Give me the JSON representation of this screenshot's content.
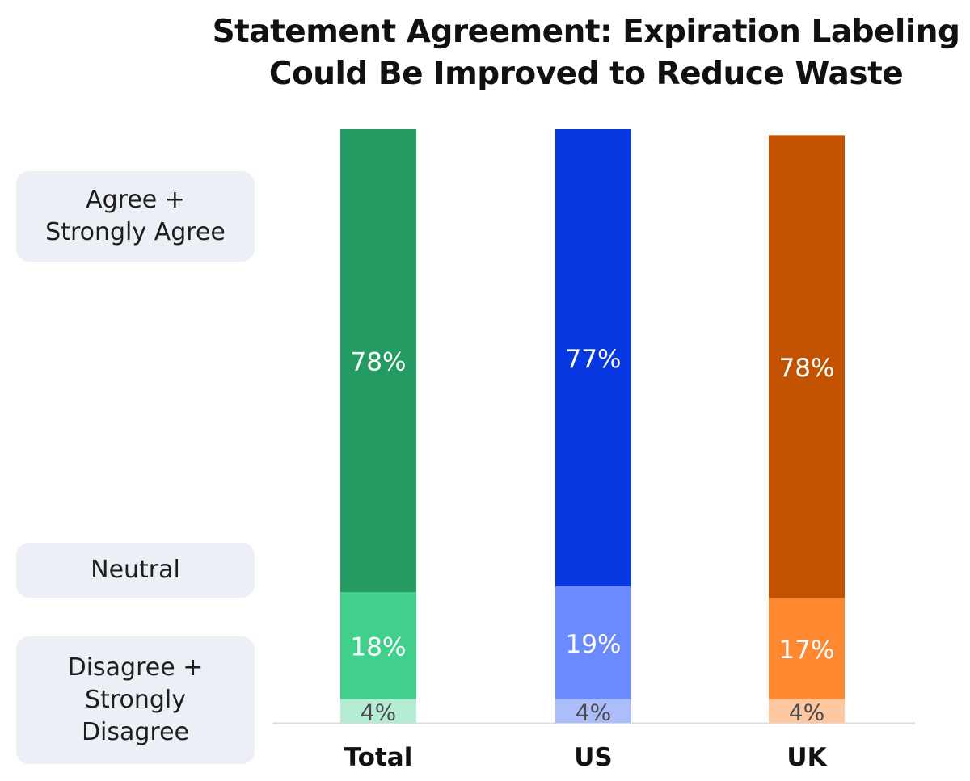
{
  "chart_data": {
    "type": "bar",
    "stacked": true,
    "title": [
      "Statement Agreement: Expiration Labeling",
      "Could Be Improved to Reduce Waste"
    ],
    "categories": [
      "Total",
      "US",
      "UK"
    ],
    "series": [
      {
        "name": "Disagree + Strongly Disagree",
        "values": [
          4,
          4,
          4
        ],
        "labels": [
          "4%",
          "4%",
          "4%"
        ]
      },
      {
        "name": "Neutral",
        "values": [
          18,
          19,
          17
        ],
        "labels": [
          "18%",
          "19%",
          "17%"
        ]
      },
      {
        "name": "Agree + Strongly Agree",
        "values": [
          78,
          77,
          78
        ],
        "labels": [
          "78%",
          "77%",
          "78%"
        ]
      }
    ],
    "legend": [
      {
        "name": "Agree + Strongly Agree",
        "lines": [
          "Agree +",
          "Strongly Agree"
        ]
      },
      {
        "name": "Neutral",
        "lines": [
          "Neutral"
        ]
      },
      {
        "name": "Disagree + Strongly Disagree",
        "lines": [
          "Disagree +",
          "Strongly",
          "Disagree"
        ]
      }
    ],
    "legend_position": "left",
    "colors": {
      "Total": [
        "#b4ecd4",
        "#41d08c",
        "#259b64"
      ],
      "US": [
        "#abbdfb",
        "#6a8afe",
        "#0838e2"
      ],
      "UK": [
        "#fec79f",
        "#ff8830",
        "#c25200"
      ]
    },
    "label_colors": {
      "dark": "#4a4a4a",
      "light": "#ffffff"
    },
    "ylim": [
      0,
      100
    ],
    "grid": false
  }
}
